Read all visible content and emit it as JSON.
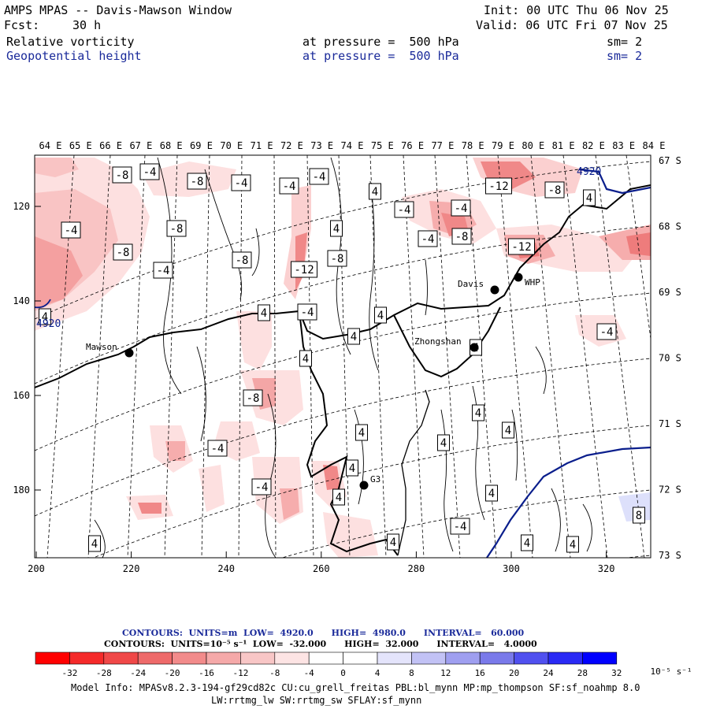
{
  "header": {
    "title": "AMPS MPAS -- Davis-Mawson Window",
    "init": "Init: 00 UTC Thu 06 Nov 25",
    "fcst_label": "Fcst:",
    "fcst_value": "30 h",
    "valid": "Valid: 06 UTC Fri 07 Nov 25",
    "field1_name": "Relative vorticity",
    "field1_level": "at pressure =  500 hPa",
    "field1_sm": "sm= 2",
    "field2_name": "Geopotential height",
    "field2_level": "at pressure =  500 hPa",
    "field2_sm": "sm= 2"
  },
  "map": {
    "top_lon_labels": [
      "64 E",
      "65 E",
      "66 E",
      "67 E",
      "68 E",
      "69 E",
      "70 E",
      "71 E",
      "72 E",
      "73 E",
      "74 E",
      "75 E",
      "76 E",
      "77 E",
      "78 E",
      "79 E",
      "80 E",
      "81 E",
      "82 E",
      "83 E",
      "84 E"
    ],
    "right_lat_labels": [
      "67 S",
      "68 S",
      "69 S",
      "70 S",
      "71 S",
      "72 S",
      "73 S"
    ],
    "left_y_ticks": [
      "120",
      "140",
      "160",
      "180"
    ],
    "bottom_x_ticks": [
      "200",
      "220",
      "240",
      "260",
      "280",
      "300",
      "320"
    ],
    "stations": [
      {
        "name": "Mawson"
      },
      {
        "name": "Davis"
      },
      {
        "name": "WHP"
      },
      {
        "name": "Zhongshan"
      },
      {
        "name": "G3"
      }
    ],
    "height_labels": [
      "4920",
      "4920"
    ],
    "vort_labels": [
      "-8",
      "-4",
      "-8",
      "-4",
      "-4",
      "-4",
      "4",
      "-4",
      "-12",
      "-8",
      "-4",
      "-8",
      "-8",
      "-4",
      "-8",
      "-12",
      "-4",
      "-8",
      "-4",
      "4",
      "4",
      "-8",
      "-4",
      "4",
      "-12",
      "4",
      "4",
      "-4",
      "4",
      "4",
      "-8",
      "4",
      "4",
      "4",
      "-4",
      "4",
      "4",
      "-4",
      "4",
      "-4",
      "4",
      "4",
      "4",
      "4",
      "8",
      "4",
      "4"
    ],
    "colors": {
      "height_contour": "#0a1e8c",
      "coast": "#000000",
      "pink_light": "#fde0e0",
      "pink_mid": "#f7b5b5",
      "pink_dark": "#ef8080",
      "blue_light": "#dde0fb"
    }
  },
  "legend": {
    "contours_height": "CONTOURS:  UNITS=m  LOW=  4920.0      HIGH=  4980.0      INTERVAL=   60.000",
    "contours_vort": "CONTOURS:  UNITS=10⁻⁵ s⁻¹  LOW=  -32.000      HIGH=  32.000      INTERVAL=   4.0000",
    "colorbar_ticks": [
      "-32",
      "-28",
      "-24",
      "-20",
      "-16",
      "-12",
      "-8",
      "-4",
      "0",
      "4",
      "8",
      "12",
      "16",
      "20",
      "24",
      "28",
      "32"
    ],
    "colorbar_units": "10⁻⁵ s⁻¹",
    "colorbar_colors": [
      "#ff0000",
      "#f52a2a",
      "#f04848",
      "#ee6a6a",
      "#f28b8b",
      "#f5a9a9",
      "#f8c6c6",
      "#fde4e4",
      "#ffffff",
      "#ffffff",
      "#e4e4fb",
      "#c2c2f5",
      "#9f9ff0",
      "#7a7aea",
      "#5050ef",
      "#2a2af5",
      "#0000ff"
    ]
  },
  "footer": {
    "model_info": "Model Info: MPASv8.2.3-194-gf29cd82c CU:cu_grell_freitas PBL:bl_mynn MP:mp_thompson SF:sf_noahmp 8.0",
    "model_info2": "LW:rrtmg_lw SW:rrtmg_sw SFLAY:sf_mynn"
  }
}
